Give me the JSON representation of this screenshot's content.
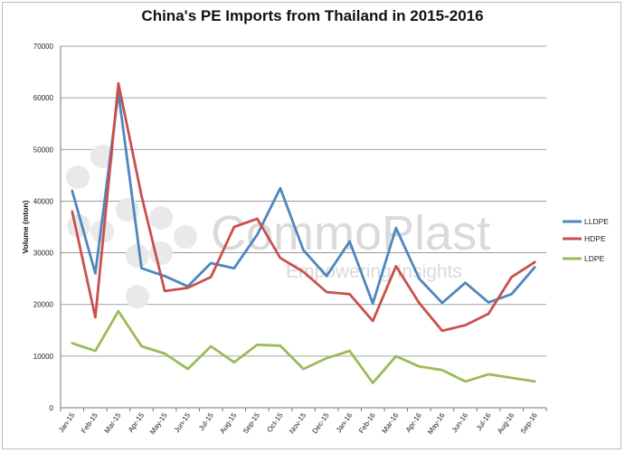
{
  "chart_data": {
    "type": "line",
    "title": "China's PE Imports from Thailand in 2015-2016",
    "xlabel": "",
    "ylabel": "Volume (mton)",
    "ylim": [
      0,
      70000
    ],
    "yticks": [
      0,
      10000,
      20000,
      30000,
      40000,
      50000,
      60000,
      70000
    ],
    "grid": true,
    "legend_position": "right",
    "categories": [
      "Jan-15",
      "Feb-15",
      "Mar-15",
      "Apr-15",
      "May-15",
      "Jun-15",
      "Jul-15",
      "Aug-15",
      "Sep-15",
      "Oct-15",
      "Nov-15",
      "Dec-15",
      "Jan-16",
      "Feb-16",
      "Mar-16",
      "Apr-16",
      "May-16",
      "Jun-16",
      "Jul-16",
      "Aug-16",
      "Sep-16"
    ],
    "series": [
      {
        "name": "LLDPE",
        "color": "#4f86c0",
        "values": [
          42000,
          26000,
          61000,
          27000,
          25500,
          23500,
          28000,
          27000,
          33500,
          42500,
          30500,
          25500,
          32200,
          20200,
          34800,
          25000,
          20300,
          24200,
          20400,
          22000,
          27200
        ]
      },
      {
        "name": "HDPE",
        "color": "#c9504d",
        "values": [
          38000,
          17500,
          62800,
          41000,
          22600,
          23200,
          25300,
          35000,
          36600,
          29000,
          26300,
          22400,
          22000,
          16800,
          27400,
          20300,
          14900,
          16000,
          18200,
          25300,
          28200
        ]
      },
      {
        "name": "LDPE",
        "color": "#9bbb59",
        "values": [
          12500,
          11000,
          18700,
          11900,
          10500,
          7500,
          11900,
          8800,
          12200,
          12000,
          7500,
          9600,
          11000,
          4800,
          10000,
          8000,
          7300,
          5100,
          6500,
          5800,
          5100
        ]
      }
    ]
  },
  "watermark": {
    "brand": "CommoPlast",
    "tagline": "Empowering Insights"
  }
}
